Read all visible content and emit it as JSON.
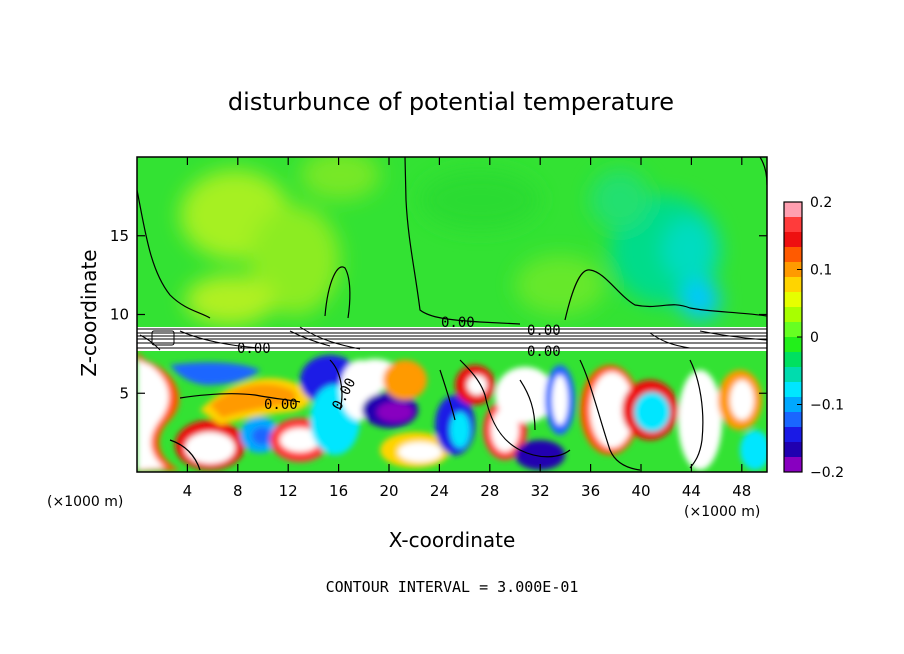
{
  "chart_data": {
    "type": "heatmap",
    "title": "disturbunce of potential temperature",
    "xlabel": "X-coordinate",
    "ylabel": "Z-coordinate",
    "x_unit_left": "(×1000 m)",
    "x_unit_right": "(×1000 m)",
    "x_ticks": [
      "4",
      "8",
      "12",
      "16",
      "20",
      "24",
      "28",
      "32",
      "36",
      "40",
      "44",
      "48"
    ],
    "x_tick_values": [
      4,
      8,
      12,
      16,
      20,
      24,
      28,
      32,
      36,
      40,
      44,
      48
    ],
    "y_ticks": [
      "5",
      "10",
      "15"
    ],
    "y_tick_values": [
      5,
      10,
      15
    ],
    "xlim": [
      0,
      50
    ],
    "ylim": [
      0,
      20
    ],
    "colorbar": {
      "ticks": [
        "0.2",
        "0.1",
        "0",
        "−0.1",
        "−0.2"
      ],
      "tick_values": [
        0.2,
        0.1,
        0,
        -0.1,
        -0.2
      ],
      "range": [
        -0.2,
        0.2
      ],
      "colors": [
        "#ff9fb0",
        "#ff3b3b",
        "#ee1010",
        "#ff5a00",
        "#ff9a00",
        "#ffd400",
        "#e6ff00",
        "#a8ff00",
        "#66ff22",
        "#22f01a",
        "#00e060",
        "#00dcae",
        "#00e6ff",
        "#00a8ff",
        "#1a66ff",
        "#1a1ae6",
        "#2000b0",
        "#8800c0"
      ]
    },
    "contour_labels": [
      "0.00",
      "0.00",
      "0.00",
      "0.00",
      "0.00",
      "0.00"
    ],
    "footer": "CONTOUR INTERVAL = 3.000E-01"
  }
}
